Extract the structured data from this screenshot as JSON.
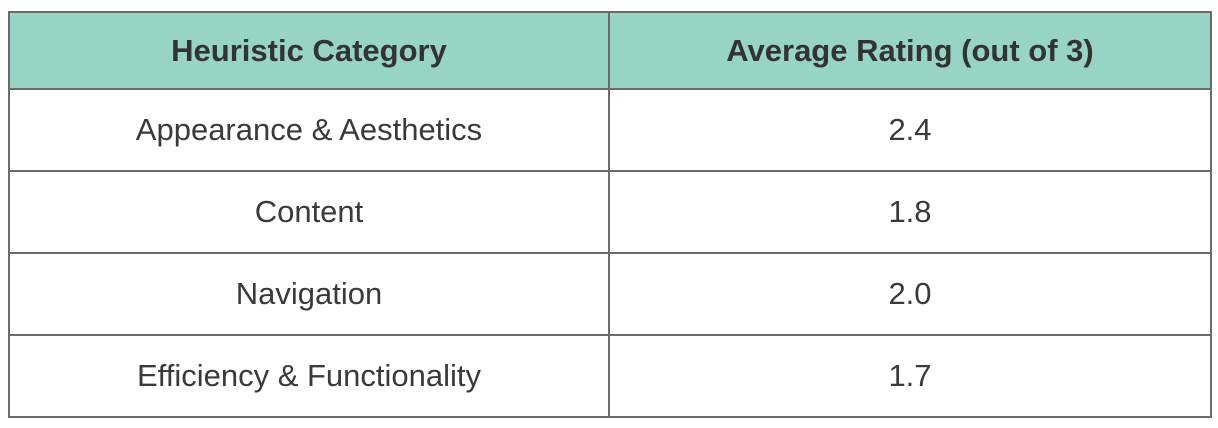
{
  "table": {
    "headers": [
      "Heuristic Category",
      "Average Rating (out of 3)"
    ],
    "rows": [
      {
        "category": "Appearance & Aesthetics",
        "rating": "2.4"
      },
      {
        "category": "Content",
        "rating": "1.8"
      },
      {
        "category": "Navigation",
        "rating": "2.0"
      },
      {
        "category": "Efficiency & Functionality",
        "rating": "1.7"
      }
    ]
  },
  "colors": {
    "header_background": "#97d4c6",
    "border": "#6b6b6b",
    "text": "#3a3a3a"
  }
}
